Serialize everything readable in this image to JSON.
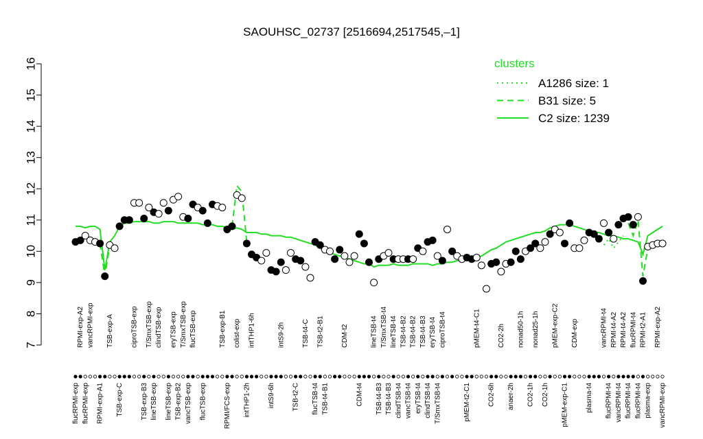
{
  "chart_data": {
    "type": "line",
    "title": "SAOUHSC_02737 [2516694,2517545,–1]",
    "legend_title": "clusters",
    "legend_position": "top-right",
    "ylim": [
      7,
      16
    ],
    "yticks": [
      7,
      8,
      9,
      10,
      11,
      12,
      13,
      14,
      15,
      16
    ],
    "categories": [
      "flucRPMI-exp",
      "RPMI-exp-A2",
      "flucRPMI-exp",
      "vancRPMI-exp",
      null,
      "RPMI-exp-A1",
      null,
      "TSB-exp-A",
      null,
      "TSB-exp-C",
      null,
      null,
      "ciproTSB-exp",
      null,
      "TSB-exp-B3",
      "T/SmxTSB-exp",
      "lineTSB-exp",
      "clindTSB-exp",
      null,
      "lineTSB-exp",
      "eryTSB-exp",
      "TSB-exp-B2",
      "T/SmxTSB-exp",
      "vancTSB-exp",
      "flucTSB-exp",
      null,
      "flucTSB-exp",
      null,
      null,
      null,
      "TSB-exp-B1",
      "RPMI/FCS-exp",
      null,
      "colist-exp",
      null,
      "intTHP1-2h",
      "intTHP1-6h",
      null,
      null,
      null,
      "intS9-6h",
      null,
      "intS9-2h",
      null,
      null,
      "TSB-t2-C",
      null,
      "TSB-t4-C",
      null,
      "flucTSB-t4",
      "TSB-t2-B1",
      "TSB-t4-B1",
      null,
      null,
      null,
      "CDM-t2",
      null,
      null,
      "CDM-t4",
      null,
      null,
      "lineTSB-t4",
      "TSB-t4-B3",
      "T/SmxTSB-t4",
      "TSB-t4-B3",
      "lineTSB-t4",
      "clindTSB-t4",
      "TSB-t4-B2",
      "vancTSB-t4",
      "TSB-t4-B2",
      "eryTSB-t4",
      "TSB-t4-B3",
      "clindTSB-t4",
      "eryTSB-t4",
      "T/SmxTSB-t4",
      "ciproTSB-t4",
      null,
      null,
      null,
      null,
      "pMEM-t2-C1",
      null,
      "pMEM-t4-C1",
      null,
      null,
      "CO2-6h",
      null,
      "CO2-2h",
      null,
      "anaer-2h",
      null,
      "nonad50-1h",
      null,
      "CO2-1h",
      "nonad25-1h",
      null,
      "CO2-1h",
      null,
      "pMEM-exp-C2",
      null,
      "pMEM-exp-C1",
      null,
      "CDM-exp",
      null,
      null,
      "plasma-t4",
      null,
      null,
      "vancRPMI-t4",
      "flucRPMI-t4",
      "RPMI-t4-A2",
      "vancRPMI-t4",
      "RPMI-t4-A2",
      "flucRPMI-t4",
      "flucRPMI-t4",
      "flucRPMI-t4",
      "RPMI-t2-A1",
      "plasma-exp",
      null,
      "RPMI-exp-A2",
      "vancRPMI-exp"
    ],
    "points": {
      "color": "#000000",
      "values": [
        10.3,
        10.35,
        10.5,
        10.35,
        10.3,
        10.25,
        9.2,
        10.2,
        10.1,
        10.8,
        11.0,
        11.0,
        11.55,
        11.55,
        11.05,
        11.4,
        11.25,
        11.2,
        11.55,
        11.3,
        11.65,
        11.75,
        11.1,
        11.05,
        11.5,
        11.4,
        11.3,
        10.9,
        11.5,
        11.45,
        11.4,
        10.7,
        10.8,
        11.8,
        11.7,
        10.25,
        9.9,
        9.8,
        9.7,
        9.95,
        9.4,
        9.35,
        9.65,
        9.4,
        9.95,
        9.75,
        9.7,
        9.5,
        9.15,
        10.3,
        10.2,
        10.05,
        10.0,
        9.75,
        10.05,
        9.85,
        9.65,
        9.85,
        10.55,
        10.25,
        9.65,
        9.0,
        9.75,
        9.85,
        9.95,
        9.75,
        9.75,
        9.75,
        9.75,
        9.75,
        10.1,
        10.0,
        10.3,
        10.35,
        9.85,
        9.7,
        10.7,
        10.0,
        9.85,
        9.75,
        9.8,
        9.75,
        9.8,
        9.55,
        8.8,
        9.6,
        9.65,
        9.35,
        9.6,
        9.65,
        10.0,
        9.75,
        10.0,
        10.1,
        10.25,
        10.1,
        10.3,
        10.55,
        10.7,
        10.6,
        10.25,
        10.9,
        10.1,
        10.1,
        10.35,
        10.6,
        10.55,
        10.4,
        10.9,
        10.6,
        10.4,
        10.85,
        11.05,
        11.1,
        10.85,
        11.1,
        9.05,
        10.15,
        10.2,
        10.25,
        10.25
      ],
      "filled": [
        true,
        true,
        false,
        false,
        false,
        true,
        true,
        false,
        false,
        true,
        true,
        true,
        false,
        false,
        true,
        false,
        true,
        false,
        false,
        true,
        false,
        false,
        false,
        true,
        true,
        false,
        true,
        true,
        true,
        false,
        false,
        true,
        true,
        false,
        false,
        true,
        true,
        true,
        false,
        false,
        true,
        true,
        true,
        false,
        false,
        true,
        true,
        false,
        false,
        true,
        true,
        false,
        false,
        true,
        true,
        false,
        false,
        false,
        true,
        true,
        true,
        false,
        true,
        false,
        false,
        true,
        false,
        false,
        true,
        false,
        true,
        false,
        true,
        true,
        false,
        true,
        false,
        true,
        false,
        false,
        true,
        true,
        false,
        false,
        false,
        true,
        true,
        false,
        false,
        true,
        true,
        true,
        false,
        true,
        true,
        false,
        false,
        true,
        false,
        false,
        true,
        true,
        false,
        false,
        false,
        true,
        true,
        true,
        false,
        true,
        false,
        true,
        true,
        true,
        true,
        false,
        true,
        false,
        false,
        false,
        false
      ]
    },
    "series": [
      {
        "name": "A1286 size: 1",
        "color": "#22dd22",
        "style": "dotted",
        "values": [
          null,
          null,
          null,
          null,
          null,
          null,
          null,
          null,
          null,
          null,
          null,
          null,
          null,
          null,
          null,
          null,
          null,
          null,
          null,
          null,
          null,
          null,
          null,
          null,
          null,
          null,
          null,
          null,
          null,
          null,
          null,
          null,
          null,
          null,
          null,
          null,
          null,
          null,
          null,
          null,
          null,
          null,
          null,
          null,
          null,
          null,
          null,
          null,
          null,
          null,
          null,
          null,
          null,
          null,
          null,
          null,
          null,
          null,
          null,
          null,
          null,
          null,
          null,
          null,
          null,
          null,
          null,
          null,
          null,
          null,
          null,
          null,
          null,
          null,
          null,
          null,
          null,
          null,
          null,
          null,
          null,
          null,
          null,
          null,
          null,
          null,
          null,
          null,
          null,
          null,
          null,
          null,
          null,
          null,
          null,
          null,
          null,
          null,
          null,
          null,
          null,
          null,
          null,
          null,
          null,
          null,
          null,
          null,
          10.2,
          10.4,
          10.1,
          10.3,
          10.5,
          null,
          null,
          null,
          null,
          null,
          null,
          null,
          null
        ]
      },
      {
        "name": "B31 size: 5",
        "color": "#22dd22",
        "style": "dashed",
        "values": [
          null,
          null,
          null,
          null,
          null,
          10.25,
          9.2,
          10.2,
          10.1,
          null,
          null,
          null,
          null,
          null,
          null,
          null,
          null,
          null,
          null,
          null,
          null,
          null,
          null,
          null,
          null,
          null,
          null,
          null,
          null,
          null,
          null,
          null,
          10.8,
          12.1,
          11.9,
          10.3,
          null,
          null,
          null,
          null,
          null,
          null,
          null,
          null,
          null,
          null,
          null,
          null,
          null,
          null,
          null,
          null,
          null,
          null,
          null,
          null,
          null,
          null,
          null,
          null,
          null,
          null,
          null,
          null,
          null,
          null,
          null,
          null,
          null,
          null,
          null,
          null,
          null,
          null,
          null,
          null,
          null,
          null,
          null,
          null,
          null,
          null,
          null,
          null,
          null,
          null,
          null,
          null,
          null,
          null,
          null,
          null,
          null,
          null,
          null,
          null,
          null,
          null,
          null,
          null,
          null,
          null,
          null,
          null,
          null,
          null,
          null,
          null,
          null,
          null,
          null,
          null,
          null,
          10.9,
          10.5,
          11.0,
          9.2,
          10.1,
          null,
          null,
          null
        ]
      },
      {
        "name": "C2 size: 1239",
        "color": "#22dd22",
        "style": "solid",
        "values": [
          10.8,
          10.8,
          10.75,
          10.8,
          10.8,
          10.7,
          9.4,
          10.3,
          10.5,
          10.8,
          10.9,
          10.9,
          10.95,
          10.95,
          10.95,
          10.95,
          10.9,
          10.9,
          10.95,
          10.95,
          10.95,
          10.9,
          10.9,
          10.9,
          10.9,
          10.9,
          10.85,
          10.85,
          10.85,
          10.8,
          10.8,
          10.75,
          10.7,
          10.75,
          10.7,
          10.6,
          10.6,
          10.6,
          10.55,
          10.55,
          10.5,
          10.5,
          10.5,
          10.45,
          10.45,
          10.4,
          10.35,
          10.3,
          10.25,
          10.2,
          10.1,
          10.0,
          9.95,
          9.9,
          9.85,
          9.8,
          9.75,
          9.7,
          9.65,
          9.6,
          9.6,
          9.5,
          9.55,
          9.55,
          9.55,
          9.6,
          9.55,
          9.55,
          9.55,
          9.6,
          9.6,
          9.6,
          9.6,
          9.55,
          9.6,
          9.6,
          9.65,
          9.65,
          9.7,
          9.7,
          9.75,
          9.75,
          9.8,
          9.85,
          9.95,
          10.05,
          10.1,
          10.2,
          10.3,
          10.35,
          10.4,
          10.45,
          10.5,
          10.55,
          10.6,
          10.6,
          10.65,
          10.75,
          10.8,
          10.85,
          10.85,
          10.85,
          10.8,
          10.75,
          10.7,
          10.65,
          10.6,
          10.6,
          10.55,
          10.5,
          10.5,
          10.45,
          10.4,
          10.4,
          10.35,
          10.3,
          9.9,
          10.5,
          10.6,
          10.7,
          10.8
        ]
      }
    ]
  }
}
